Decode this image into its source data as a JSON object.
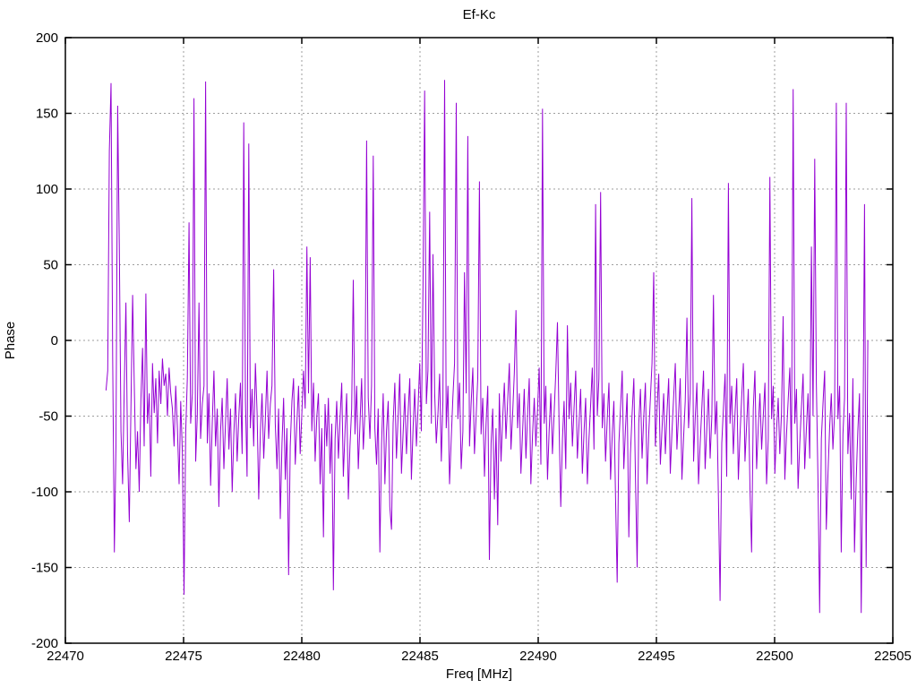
{
  "chart_data": {
    "type": "line",
    "title": "Ef-Kc",
    "xlabel": "Freq [MHz]",
    "ylabel": "Phase",
    "xlim": [
      22470,
      22505
    ],
    "ylim": [
      -200,
      200
    ],
    "x_ticks": [
      22470,
      22475,
      22480,
      22485,
      22490,
      22495,
      22500,
      22505
    ],
    "y_ticks": [
      -200,
      -150,
      -100,
      -50,
      0,
      50,
      100,
      150,
      200
    ],
    "grid": true,
    "legend": "none",
    "line_color": "#9400d3",
    "grid_color": "#9e9e9e",
    "border_color": "#000000",
    "series": [
      {
        "name": "Ef-Kc",
        "x_start": 22471.72,
        "x_step": 0.0702,
        "y_values": [
          -33,
          -20,
          125,
          170,
          -10,
          -140,
          -70,
          155,
          64,
          -60,
          -95,
          -30,
          25,
          -75,
          -120,
          -45,
          30,
          -28,
          -85,
          -60,
          -100,
          -40,
          -5,
          -70,
          31,
          -55,
          -35,
          -90,
          -15,
          -48,
          -25,
          -68,
          -20,
          -42,
          -12,
          -30,
          -22,
          -50,
          -18,
          -35,
          -45,
          -70,
          -30,
          -58,
          -95,
          -40,
          -75,
          -168,
          -60,
          -25,
          78,
          -55,
          -35,
          160,
          -80,
          -50,
          25,
          -65,
          -42,
          -30,
          171,
          -68,
          -35,
          -96,
          -55,
          -20,
          -70,
          -45,
          -110,
          -60,
          -38,
          -85,
          -55,
          -25,
          -72,
          -45,
          -100,
          -62,
          -35,
          -80,
          -50,
          -28,
          -75,
          144,
          -40,
          -90,
          130,
          -58,
          -32,
          -70,
          -15,
          -48,
          -105,
          -60,
          -35,
          -78,
          -52,
          -20,
          -65,
          -42,
          -30,
          47,
          -55,
          -85,
          -45,
          -118,
          -68,
          -38,
          -92,
          -58,
          -155,
          -70,
          -40,
          -25,
          -82,
          -55,
          -30,
          -75,
          -48,
          -20,
          -45,
          62,
          -35,
          55,
          -60,
          -28,
          -80,
          -50,
          -35,
          -95,
          -58,
          -130,
          -42,
          -70,
          -38,
          -88,
          -55,
          -165,
          -65,
          -40,
          -78,
          -52,
          -28,
          -90,
          -60,
          -35,
          -105,
          -70,
          -45,
          40,
          -62,
          -30,
          -85,
          -55,
          -25,
          -72,
          -48,
          132,
          -38,
          -65,
          -30,
          122,
          -58,
          -82,
          -45,
          -140,
          -68,
          -35,
          -95,
          -60,
          -40,
          -110,
          -125,
          -55,
          -28,
          -78,
          -50,
          -22,
          -88,
          -62,
          -35,
          -75,
          -48,
          -25,
          -92,
          -58,
          -32,
          -70,
          -45,
          -15,
          -60,
          38,
          165,
          -42,
          -20,
          85,
          -55,
          57,
          -35,
          -68,
          -48,
          -22,
          -80,
          -40,
          172,
          -58,
          -30,
          -95,
          -65,
          -38,
          -15,
          157,
          -52,
          -28,
          -85,
          -60,
          45,
          -35,
          135,
          -70,
          -42,
          -18,
          -75,
          -50,
          -25,
          105,
          -62,
          -38,
          -90,
          -55,
          -30,
          -145,
          -68,
          -45,
          -105,
          -58,
          -122,
          -35,
          -80,
          -52,
          -28,
          -65,
          -40,
          -15,
          -72,
          -48,
          -22,
          20,
          -58,
          -35,
          -88,
          -60,
          -32,
          -78,
          -50,
          -25,
          -95,
          -62,
          -38,
          -70,
          -45,
          -18,
          -82,
          153,
          -55,
          -30,
          -92,
          -60,
          -35,
          -75,
          -48,
          -22,
          12,
          -58,
          -110,
          -65,
          -40,
          -85,
          10,
          -52,
          -28,
          -70,
          -45,
          -20,
          -78,
          -55,
          -32,
          -88,
          -60,
          -38,
          -95,
          -65,
          -42,
          -18,
          -72,
          90,
          -50,
          -25,
          98,
          -58,
          -35,
          -80,
          -52,
          -28,
          -92,
          -62,
          -40,
          -105,
          -160,
          -68,
          -45,
          -20,
          -85,
          -58,
          -35,
          -130,
          -75,
          -48,
          -25,
          -90,
          -150,
          -55,
          -32,
          -78,
          -50,
          -28,
          -95,
          -62,
          -38,
          -15,
          45,
          -70,
          -45,
          -22,
          -82,
          -58,
          -35,
          -75,
          -48,
          -25,
          -88,
          -60,
          -38,
          -15,
          -72,
          -48,
          -25,
          -92,
          -65,
          -40,
          15,
          -58,
          -35,
          94,
          -80,
          -52,
          -28,
          -95,
          -68,
          -45,
          -20,
          -85,
          -58,
          -32,
          -78,
          -50,
          30,
          -62,
          -40,
          -105,
          -172,
          -68,
          -45,
          -22,
          -90,
          104,
          -55,
          -30,
          -75,
          -48,
          -25,
          -92,
          -62,
          -38,
          -15,
          -80,
          -55,
          -32,
          -98,
          -140,
          -45,
          -20,
          -85,
          -58,
          -35,
          -72,
          -50,
          -28,
          -95,
          -65,
          108,
          -52,
          -30,
          -88,
          -60,
          -38,
          -75,
          -48,
          16,
          -92,
          -62,
          -40,
          -18,
          -82,
          166,
          -55,
          -32,
          -98,
          -68,
          -45,
          -22,
          -85,
          -58,
          -35,
          -78,
          62,
          -50,
          120,
          -28,
          -95,
          -180,
          -65,
          -42,
          -20,
          -125,
          -88,
          -58,
          -35,
          -72,
          -48,
          157,
          -52,
          -30,
          -140,
          -62,
          -38,
          157,
          -75,
          -48,
          -105,
          -25,
          -140,
          -92,
          -60,
          -35,
          -180,
          -80,
          90,
          -150,
          0
        ]
      }
    ]
  }
}
